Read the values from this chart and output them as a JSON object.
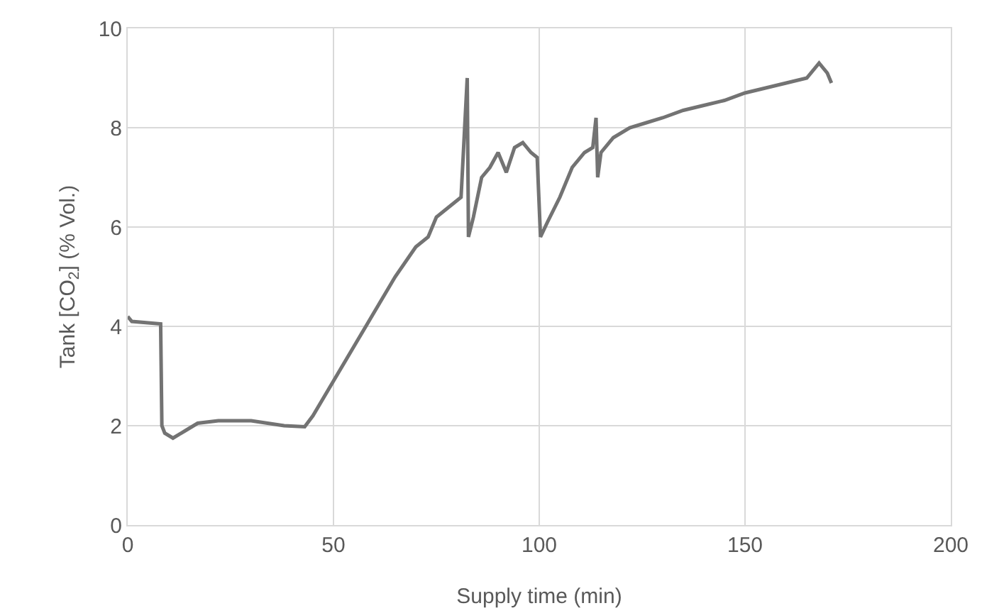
{
  "chart_data": {
    "type": "line",
    "xlabel": "Supply time (min)",
    "ylabel": "Tank [CO$_{2}$] (% Vol.)",
    "series": [
      {
        "color": "#737373",
        "x": [
          0,
          1,
          8,
          8.3,
          9,
          11,
          14,
          17,
          22,
          30,
          38,
          43,
          45,
          50,
          55,
          60,
          65,
          70,
          73,
          75,
          78,
          81,
          82.5,
          82.8,
          84,
          86,
          88,
          90,
          92,
          94,
          96,
          98,
          99.5,
          100.3,
          102,
          105,
          108,
          111,
          113,
          113.8,
          114.2,
          115,
          118,
          122,
          126,
          130,
          135,
          140,
          145,
          150,
          155,
          160,
          165,
          168,
          170,
          171
        ],
        "values": [
          4.2,
          4.1,
          4.05,
          2.0,
          1.85,
          1.75,
          1.9,
          2.05,
          2.1,
          2.1,
          2.0,
          1.98,
          2.2,
          2.9,
          3.6,
          4.3,
          5.0,
          5.6,
          5.8,
          6.2,
          6.4,
          6.6,
          9.0,
          5.8,
          6.2,
          7.0,
          7.2,
          7.5,
          7.1,
          7.6,
          7.7,
          7.5,
          7.4,
          5.8,
          6.1,
          6.6,
          7.2,
          7.5,
          7.6,
          8.2,
          7.0,
          7.5,
          7.8,
          8.0,
          8.1,
          8.2,
          8.35,
          8.45,
          8.55,
          8.7,
          8.8,
          8.9,
          9.0,
          9.3,
          9.1,
          8.9
        ]
      }
    ],
    "xlim": [
      0,
      200
    ],
    "xticks": [
      0,
      50,
      100,
      150,
      200
    ],
    "ylim": [
      0,
      10
    ],
    "yticks": [
      0,
      2,
      4,
      6,
      8,
      10
    ],
    "grid": true,
    "marker": "none",
    "line_style": "solid"
  }
}
